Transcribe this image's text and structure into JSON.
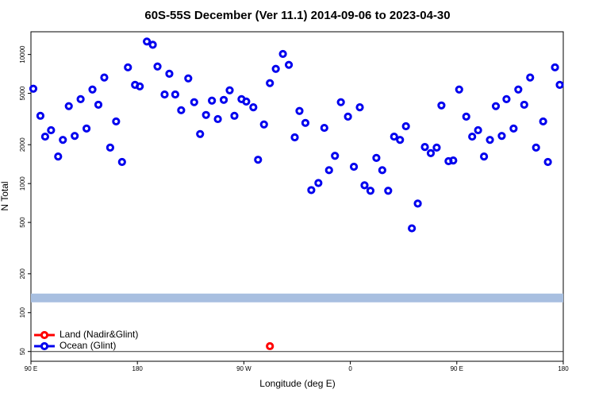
{
  "chart_data": {
    "type": "scatter",
    "title": "60S-55S December (Ver 11.1)   2014-09-06 to 2023-04-30",
    "x_label": "Longitude (deg E)",
    "y_label": "N Total",
    "log_y": true,
    "xlim": [
      90,
      540
    ],
    "ylim": [
      42,
      15000
    ],
    "xticks": [
      {
        "value": 90,
        "label": "90 E"
      },
      180,
      {
        "value": 270,
        "label": "90 W"
      },
      {
        "value": 360,
        "label": "0"
      },
      {
        "value": 450,
        "label": "90 E"
      },
      {
        "value": 540,
        "label": "180"
      }
    ],
    "yticks": [
      50,
      100,
      200,
      500,
      1000,
      2000,
      5000,
      10000
    ],
    "band": {
      "value": 130,
      "color": "#a8bfe0"
    },
    "hline": 50,
    "legend": "bottom-left",
    "series": [
      {
        "name": "Land (Nadir&Glint)",
        "color": "#ff0000",
        "x": [
          292
        ],
        "values": [
          55
        ]
      },
      {
        "name": "Ocean (Glint)",
        "color": "#0000ee",
        "x": [
          92,
          98,
          102,
          107,
          113,
          117,
          122,
          127,
          132,
          137,
          142,
          147,
          152,
          157,
          162,
          167,
          172,
          178,
          182,
          188,
          193,
          197,
          203,
          207,
          212,
          217,
          223,
          228,
          233,
          238,
          243,
          248,
          253,
          258,
          262,
          268,
          272,
          278,
          282,
          287,
          292,
          297,
          303,
          308,
          313,
          317,
          322,
          327,
          333,
          338,
          342,
          347,
          352,
          358,
          363,
          368,
          372,
          377,
          382,
          387,
          392,
          397,
          402,
          407,
          412,
          417,
          423,
          428,
          433,
          437,
          443,
          447,
          452,
          458,
          463,
          468,
          473,
          478,
          483,
          488,
          492,
          498,
          502,
          507,
          512,
          517,
          523,
          527,
          533,
          537
        ],
        "values": [
          5430,
          3350,
          2310,
          2590,
          1620,
          2180,
          3980,
          2340,
          4510,
          2670,
          5350,
          4080,
          6630,
          1900,
          3030,
          1470,
          7950,
          5820,
          5660,
          12600,
          11900,
          8070,
          4900,
          7090,
          4900,
          3700,
          6530,
          4270,
          2420,
          3400,
          4390,
          3160,
          4450,
          5280,
          3350,
          4510,
          4320,
          3900,
          1530,
          2870,
          6000,
          7740,
          10100,
          8310,
          2280,
          3650,
          2950,
          890,
          1010,
          2700,
          1270,
          1640,
          4270,
          3300,
          1350,
          3900,
          970,
          880,
          1580,
          1270,
          880,
          2310,
          2180,
          2780,
          450,
          700,
          1920,
          1720,
          1900,
          4030,
          1490,
          1510,
          5350,
          3300,
          2310,
          2590,
          1620,
          2180,
          3980,
          2340,
          4510,
          2670,
          5350,
          4080,
          6630,
          1900,
          3030,
          1470,
          7950,
          5820
        ]
      }
    ]
  }
}
